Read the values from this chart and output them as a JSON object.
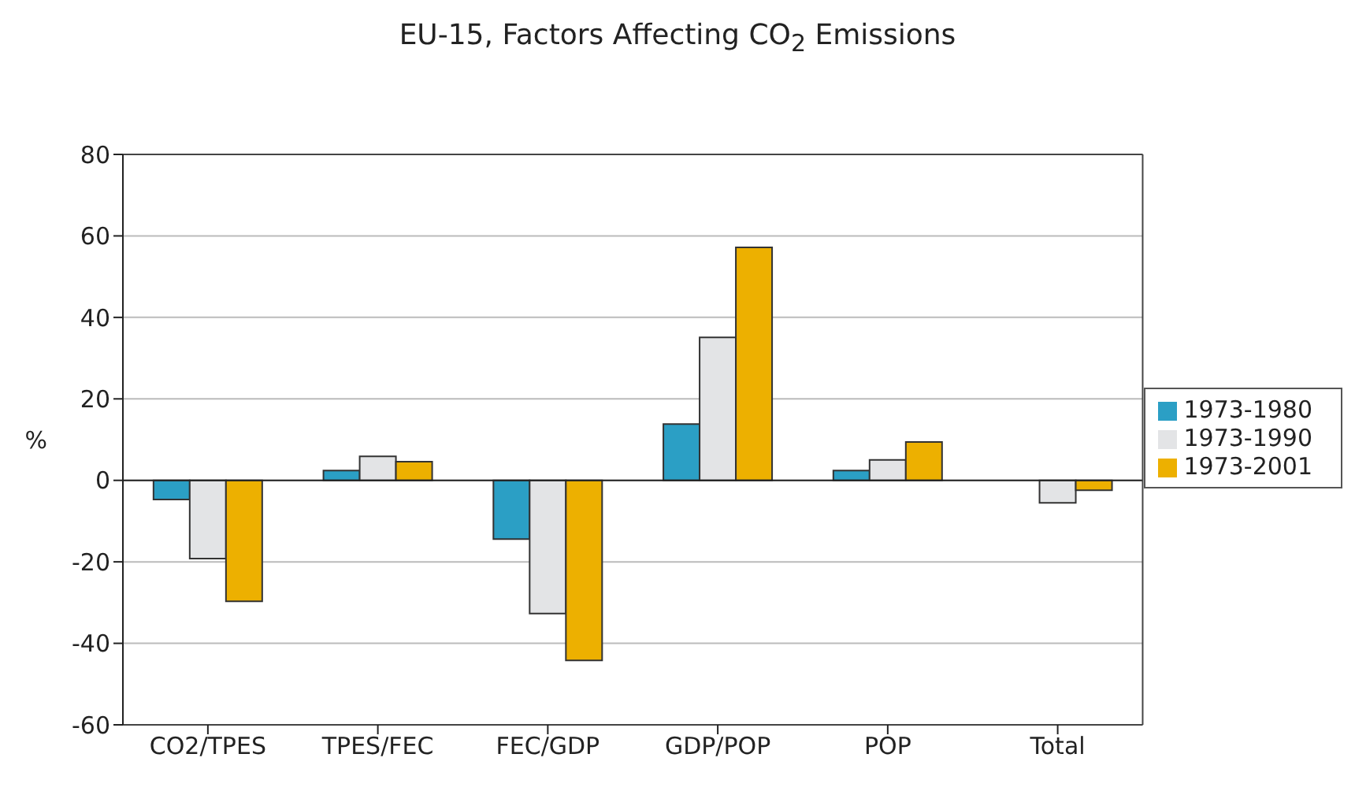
{
  "chart_data": {
    "type": "bar",
    "title": "EU-15, Factors Affecting CO$_{2}$ Emissions",
    "ylabel": "%",
    "categories": [
      "CO2/TPES",
      "TPES/FEC",
      "FEC/GDP",
      "GDP/POP",
      "POP",
      "Total"
    ],
    "series": [
      {
        "name": "1973-1980",
        "color": "#2b9fc5",
        "values": [
          -4.7,
          2.4,
          -14.4,
          13.8,
          2.4,
          null
        ]
      },
      {
        "name": "1973-1990",
        "color": "#e3e4e6",
        "values": [
          -19.2,
          5.9,
          -32.7,
          35.1,
          5.0,
          -5.5
        ]
      },
      {
        "name": "1973-2001",
        "color": "#edb000",
        "values": [
          -29.7,
          4.6,
          -44.2,
          57.2,
          9.4,
          -2.4
        ]
      }
    ],
    "ylim": [
      -60,
      80
    ],
    "yticks": [
      -60,
      -40,
      -20,
      0,
      20,
      40,
      60,
      80
    ],
    "grid": "y",
    "legend": "right"
  }
}
